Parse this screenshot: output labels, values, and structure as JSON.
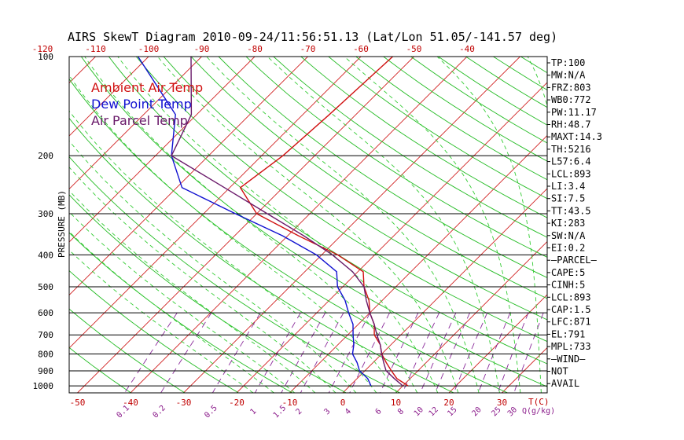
{
  "chart_data": {
    "type": "line",
    "title": "AIRS SkewT Diagram 2010-09-24/11:56:51.13 (Lat/Lon 51.05/-141.57 deg)",
    "ylabel": "PRESSURE (MB)",
    "xlabel_right": "T(C)",
    "mixing_label": "Q(g/kg)",
    "pressure_ticks": [
      "100",
      "200",
      "300",
      "400",
      "500",
      "600",
      "700",
      "800",
      "900",
      "1000"
    ],
    "top_temp_ticks": [
      "-120",
      "-110",
      "-100",
      "-90",
      "-80",
      "-70",
      "-60",
      "-50",
      "-40"
    ],
    "bottom_temp_ticks": [
      "-50",
      "-40",
      "-30",
      "-20",
      "-10",
      "0",
      "10",
      "20",
      "30"
    ],
    "mixing_ratio_ticks": [
      "0.1",
      "0.2",
      "0.5",
      "1",
      "1.5",
      "2",
      "3",
      "4",
      "6",
      "8",
      "10",
      "12",
      "15",
      "20",
      "25",
      "30"
    ],
    "legend": [
      {
        "name": "Ambient Air Temp",
        "color": "#d01010"
      },
      {
        "name": "Dew Point Temp",
        "color": "#1010d0"
      },
      {
        "name": "Air Parcel Temp",
        "color": "#6a1a6a"
      }
    ],
    "series": [
      {
        "name": "Ambient Air Temp",
        "color": "#d01010",
        "points": [
          [
            100,
            -54
          ],
          [
            150,
            -55
          ],
          [
            200,
            -56
          ],
          [
            250,
            -58
          ],
          [
            300,
            -50
          ],
          [
            350,
            -38
          ],
          [
            400,
            -27
          ],
          [
            450,
            -19
          ],
          [
            500,
            -16
          ],
          [
            550,
            -12.5
          ],
          [
            600,
            -10
          ],
          [
            650,
            -7
          ],
          [
            700,
            -5
          ],
          [
            750,
            -2
          ],
          [
            800,
            0
          ],
          [
            850,
            2.5
          ],
          [
            900,
            5
          ],
          [
            950,
            7.5
          ],
          [
            1000,
            11
          ]
        ]
      },
      {
        "name": "Dew Point Temp",
        "color": "#1010d0",
        "points": [
          [
            100,
            -102
          ],
          [
            150,
            -84
          ],
          [
            200,
            -77
          ],
          [
            250,
            -69
          ],
          [
            300,
            -54
          ],
          [
            350,
            -41
          ],
          [
            400,
            -31
          ],
          [
            450,
            -24
          ],
          [
            500,
            -21
          ],
          [
            550,
            -17
          ],
          [
            600,
            -14
          ],
          [
            650,
            -11
          ],
          [
            700,
            -9
          ],
          [
            750,
            -7
          ],
          [
            800,
            -5.5
          ],
          [
            850,
            -3
          ],
          [
            900,
            -1
          ],
          [
            950,
            2
          ],
          [
            1000,
            4
          ]
        ]
      },
      {
        "name": "Air Parcel Temp",
        "color": "#6a1a6a",
        "points": [
          [
            100,
            -92
          ],
          [
            150,
            -81
          ],
          [
            200,
            -77
          ],
          [
            250,
            -61
          ],
          [
            300,
            -48
          ],
          [
            350,
            -37
          ],
          [
            400,
            -28
          ],
          [
            450,
            -21
          ],
          [
            500,
            -16
          ],
          [
            550,
            -13
          ],
          [
            600,
            -10
          ],
          [
            650,
            -7
          ],
          [
            700,
            -4.5
          ],
          [
            750,
            -2
          ],
          [
            800,
            0
          ],
          [
            850,
            2
          ],
          [
            900,
            4
          ],
          [
            950,
            7
          ],
          [
            1000,
            10
          ]
        ]
      }
    ]
  },
  "indices": [
    "TP:100",
    "MW:N/A",
    "FRZ:803",
    "WB0:772",
    "PW:11.17",
    "RH:48.7",
    "MAXT:14.3",
    "TH:5216",
    "L57:6.4",
    "LCL:893",
    "LI:3.4",
    "SI:7.5",
    "TT:43.5",
    "KI:283",
    "SW:N/A",
    "EI:0.2",
    "—PARCEL—",
    "CAPE:5",
    "CINH:5",
    "LCL:893",
    "CAP:1.5",
    "LFC:871",
    "EL:791",
    "MPL:733",
    "—WIND—",
    "NOT",
    "AVAIL"
  ]
}
